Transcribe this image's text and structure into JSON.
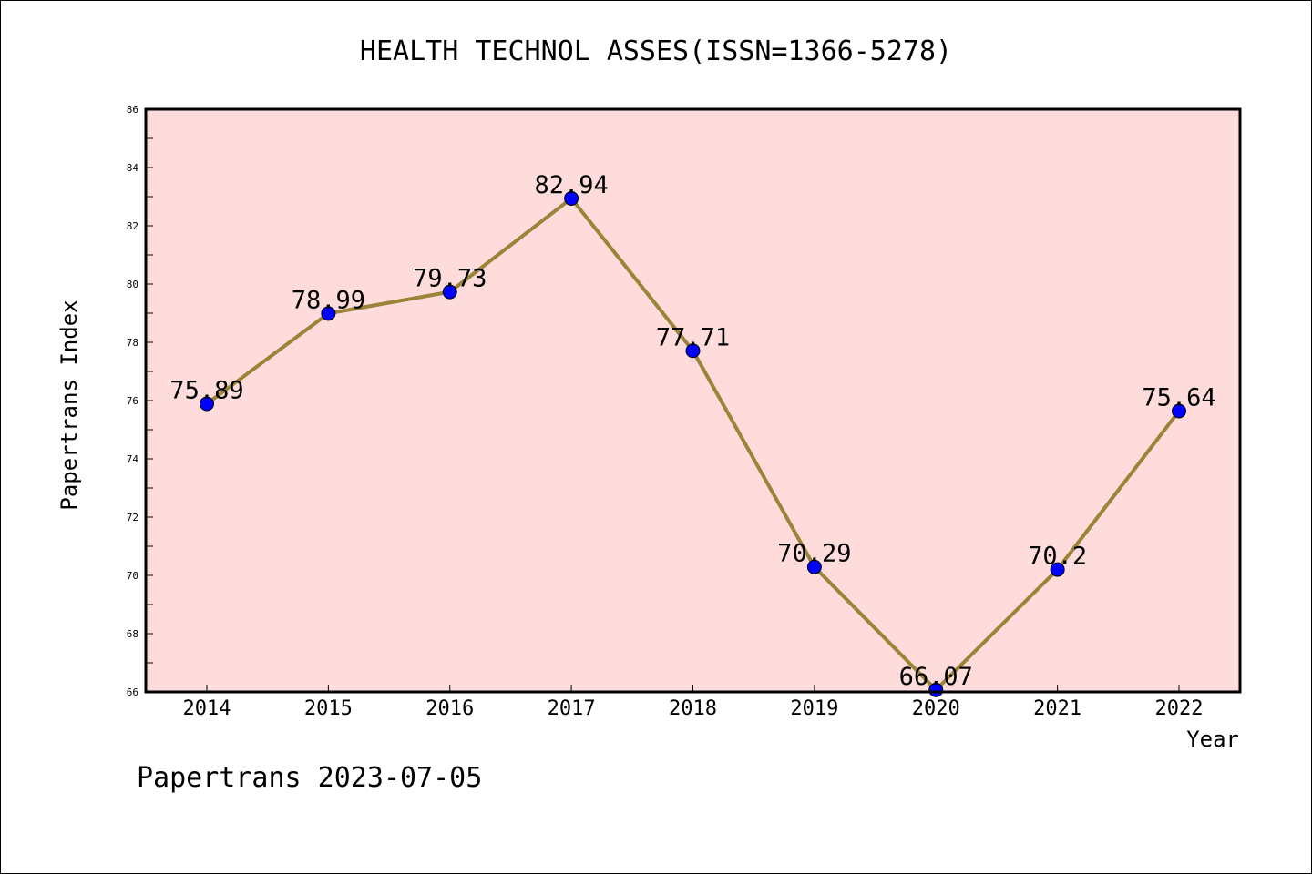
{
  "chart_data": {
    "type": "line",
    "title": "HEALTH TECHNOL ASSES(ISSN=1366-5278)",
    "xlabel": "Year",
    "ylabel": "Papertrans Index",
    "categories": [
      "2014",
      "2015",
      "2016",
      "2017",
      "2018",
      "2019",
      "2020",
      "2021",
      "2022"
    ],
    "values": [
      75.89,
      78.99,
      79.73,
      82.94,
      77.71,
      70.29,
      66.07,
      70.2,
      75.64
    ],
    "data_labels": [
      "75.89",
      "78.99",
      "79.73",
      "82.94",
      "77.71",
      "70.29",
      "66.07",
      "70.2",
      "75.64"
    ],
    "ylim": [
      66,
      86
    ],
    "yticks": [
      "66",
      "68",
      "70",
      "72",
      "74",
      "76",
      "78",
      "80",
      "82",
      "84",
      "86"
    ],
    "grid": false,
    "colors": {
      "plot_background": "#fddcdb",
      "line": "#9b8438",
      "marker": "#0000ff"
    }
  },
  "footer": "Papertrans 2023-07-05"
}
